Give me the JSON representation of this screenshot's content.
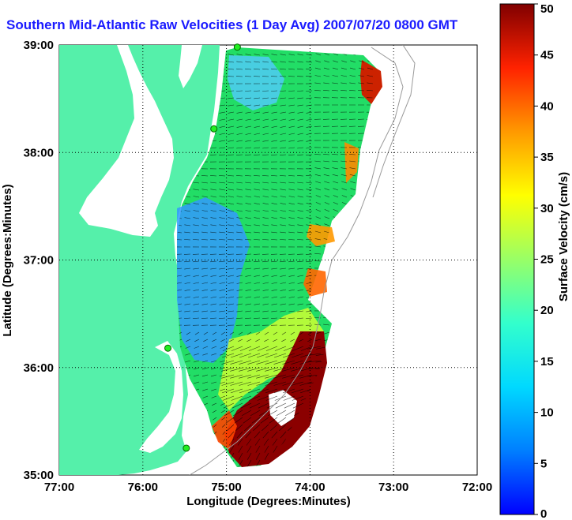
{
  "title": "Southern Mid-Atlantic Raw Velocities (1 Day Avg) 2007/07/20 0800 GMT",
  "map": {
    "xlabel": "Longitude (Degrees:Minutes)",
    "ylabel": "Latitude (Degrees:Minutes)",
    "x_ticks": [
      "77:00",
      "76:00",
      "75:00",
      "74:00",
      "73:00",
      "72:00"
    ],
    "y_ticks": [
      "39:00",
      "38:00",
      "37:00",
      "36:00",
      "35:00"
    ],
    "lon_range": [
      -77,
      -72
    ],
    "lat_range": [
      35,
      39
    ],
    "land_color": "#55f0aa",
    "grid": "dotted"
  },
  "colorbar": {
    "label": "Surface Velocity (cm/s)",
    "ticks": [
      "0",
      "5",
      "10",
      "15",
      "20",
      "25",
      "30",
      "35",
      "40",
      "45",
      "50"
    ],
    "range": [
      0,
      50
    ],
    "colormap": "jet"
  },
  "stations": [
    {
      "name": "station-1",
      "lon": -74.87,
      "lat": 38.98
    },
    {
      "name": "station-2",
      "lon": -75.15,
      "lat": 38.22
    },
    {
      "name": "station-3",
      "lon": -75.7,
      "lat": 36.18
    },
    {
      "name": "station-4",
      "lon": -75.48,
      "lat": 35.25
    }
  ]
}
